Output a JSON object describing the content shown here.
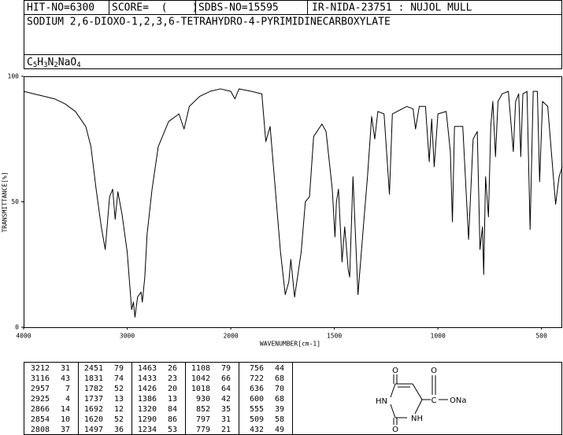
{
  "header": {
    "hit_no": "HIT-NO=6300",
    "score": "SCORE=  (    )",
    "sdbs_no": "SDBS-NO=15595",
    "ir": "IR-NIDA-23751 : NUJOL MULL",
    "name": "SODIUM 2,6-DIOXO-1,2,3,6-TETRAHYDRO-4-PYRIMIDINECARBOXYLATE",
    "formula": [
      "C",
      "5",
      "H",
      "3",
      "N",
      "2",
      "NaO",
      "4"
    ]
  },
  "chart_data": {
    "type": "line",
    "xlabel": "WAVENUMBER[cm-1]",
    "ylabel": "TRANSMITTANCE[%]",
    "xlim": [
      4000,
      400
    ],
    "ylim": [
      0,
      100
    ],
    "xticks": [
      4000,
      3000,
      2000,
      1500,
      1000,
      500
    ],
    "yticks": [
      0,
      50,
      100
    ],
    "color": "#000000",
    "x": [
      4000,
      3900,
      3800,
      3700,
      3600,
      3500,
      3400,
      3350,
      3300,
      3250,
      3212,
      3170,
      3140,
      3116,
      3090,
      3050,
      3000,
      2957,
      2940,
      2925,
      2900,
      2866,
      2854,
      2830,
      2808,
      2760,
      2700,
      2600,
      2500,
      2451,
      2400,
      2300,
      2200,
      2100,
      2000,
      1980,
      1960,
      1900,
      1850,
      1831,
      1810,
      1782,
      1760,
      1737,
      1720,
      1710,
      1692,
      1660,
      1640,
      1620,
      1600,
      1560,
      1540,
      1510,
      1497,
      1490,
      1480,
      1463,
      1450,
      1433,
      1426,
      1410,
      1386,
      1360,
      1340,
      1320,
      1305,
      1290,
      1260,
      1234,
      1220,
      1150,
      1120,
      1108,
      1090,
      1060,
      1042,
      1030,
      1018,
      1000,
      960,
      940,
      930,
      920,
      880,
      852,
      830,
      810,
      797,
      785,
      779,
      770,
      756,
      745,
      735,
      722,
      710,
      690,
      660,
      636,
      625,
      610,
      600,
      590,
      570,
      555,
      540,
      520,
      509,
      495,
      470,
      432,
      415,
      400
    ],
    "values": [
      94,
      93,
      92,
      91,
      89,
      86,
      80,
      72,
      55,
      40,
      31,
      52,
      55,
      43,
      54,
      45,
      30,
      7,
      10,
      4,
      12,
      14,
      10,
      20,
      37,
      55,
      72,
      82,
      85,
      79,
      88,
      92,
      94,
      95,
      94,
      91,
      95,
      94,
      93,
      74,
      80,
      52,
      30,
      13,
      18,
      27,
      12,
      30,
      50,
      52,
      76,
      81,
      78,
      55,
      36,
      50,
      55,
      26,
      40,
      23,
      20,
      60,
      13,
      40,
      60,
      84,
      75,
      86,
      85,
      53,
      85,
      88,
      87,
      79,
      88,
      88,
      66,
      83,
      64,
      85,
      86,
      70,
      42,
      80,
      80,
      35,
      75,
      78,
      31,
      40,
      21,
      60,
      44,
      80,
      90,
      68,
      90,
      93,
      94,
      70,
      90,
      93,
      68,
      93,
      94,
      39,
      94,
      94,
      58,
      90,
      88,
      49,
      60,
      64
    ]
  },
  "peaks": [
    [
      3212,
      31
    ],
    [
      3116,
      43
    ],
    [
      2957,
      7
    ],
    [
      2925,
      4
    ],
    [
      2866,
      14
    ],
    [
      2854,
      10
    ],
    [
      2808,
      37
    ],
    [
      2451,
      79
    ],
    [
      1831,
      74
    ],
    [
      1782,
      52
    ],
    [
      1737,
      13
    ],
    [
      1692,
      12
    ],
    [
      1620,
      52
    ],
    [
      1497,
      36
    ],
    [
      1463,
      26
    ],
    [
      1433,
      23
    ],
    [
      1426,
      20
    ],
    [
      1386,
      13
    ],
    [
      1320,
      84
    ],
    [
      1290,
      86
    ],
    [
      1234,
      53
    ],
    [
      1108,
      79
    ],
    [
      1042,
      66
    ],
    [
      1018,
      64
    ],
    [
      930,
      42
    ],
    [
      852,
      35
    ],
    [
      797,
      31
    ],
    [
      779,
      21
    ],
    [
      756,
      44
    ],
    [
      722,
      68
    ],
    [
      636,
      70
    ],
    [
      600,
      68
    ],
    [
      555,
      39
    ],
    [
      509,
      58
    ],
    [
      432,
      49
    ]
  ],
  "structure": {
    "o_top": "O",
    "hn": "HN",
    "nh": "NH",
    "o_bottom": "O",
    "c": "C",
    "o_side": "O",
    "ona": "ONa"
  }
}
